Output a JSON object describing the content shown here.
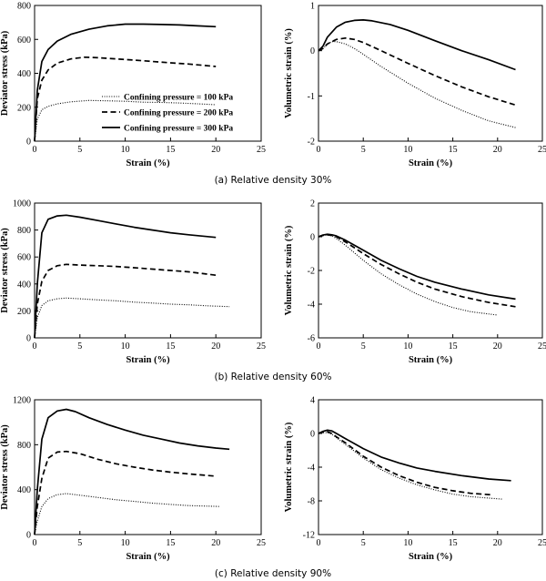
{
  "captions": [
    "(a)  Relative density 30%",
    "(b)  Relative density 60%",
    "(c)  Relative density 90%"
  ],
  "legend": {
    "entries": [
      "Confining pressure = 100 kPa",
      "Confining pressure = 200 kPa",
      "Confining pressure = 300 kPa"
    ],
    "styles": [
      "dotted",
      "dashed",
      "solid"
    ]
  },
  "chart_data": [
    {
      "type": "line",
      "panel": "a-left",
      "xlabel": "Strain (%)",
      "ylabel": "Deviator stress (kPa)",
      "xlim": [
        0,
        25
      ],
      "ylim": [
        0,
        800
      ],
      "xticks": [
        0,
        5,
        10,
        15,
        20,
        25
      ],
      "yticks": [
        0,
        200,
        400,
        600,
        800
      ],
      "series": [
        {
          "name": "Confining pressure = 100 kPa",
          "style": "dotted",
          "x": [
            0,
            0.3,
            0.8,
            1.5,
            2.5,
            4,
            6,
            8,
            10,
            12,
            14,
            16,
            18,
            20
          ],
          "y": [
            0,
            130,
            185,
            205,
            220,
            232,
            240,
            238,
            235,
            230,
            228,
            225,
            220,
            215
          ]
        },
        {
          "name": "Confining pressure = 200 kPa",
          "style": "dashed",
          "x": [
            0,
            0.3,
            0.8,
            1.5,
            2.5,
            4,
            5.5,
            7,
            9,
            11,
            13,
            15,
            17,
            19,
            20
          ],
          "y": [
            0,
            250,
            360,
            420,
            460,
            485,
            495,
            492,
            485,
            478,
            470,
            462,
            455,
            445,
            440
          ]
        },
        {
          "name": "Confining pressure = 300 kPa",
          "style": "solid",
          "x": [
            0,
            0.3,
            0.8,
            1.5,
            2.5,
            4,
            6,
            8,
            10,
            12,
            14,
            16,
            18,
            20
          ],
          "y": [
            0,
            300,
            470,
            540,
            590,
            630,
            660,
            680,
            690,
            690,
            688,
            685,
            680,
            675
          ]
        }
      ]
    },
    {
      "type": "line",
      "panel": "a-right",
      "xlabel": "Strain (%)",
      "ylabel": "Volumetric strain (%)",
      "xlim": [
        0,
        25
      ],
      "ylim": [
        -2,
        1
      ],
      "xticks": [
        0,
        5,
        10,
        15,
        20,
        25
      ],
      "yticks": [
        -2,
        -1,
        0,
        1
      ],
      "series": [
        {
          "name": "Confining pressure = 100 kPa",
          "style": "dotted",
          "x": [
            0,
            0.5,
            1,
            1.5,
            2,
            3,
            4,
            5,
            7,
            10,
            13,
            16,
            19,
            22
          ],
          "y": [
            0,
            0.05,
            0.15,
            0.2,
            0.2,
            0.15,
            0.05,
            -0.08,
            -0.35,
            -0.72,
            -1.05,
            -1.32,
            -1.55,
            -1.7
          ]
        },
        {
          "name": "Confining pressure = 200 kPa",
          "style": "dashed",
          "x": [
            0,
            0.5,
            1,
            2,
            3,
            4,
            5,
            7,
            10,
            13,
            16,
            19,
            22
          ],
          "y": [
            0,
            0.05,
            0.15,
            0.25,
            0.28,
            0.25,
            0.18,
            0,
            -0.28,
            -0.55,
            -0.8,
            -1.02,
            -1.2
          ]
        },
        {
          "name": "Confining pressure = 300 kPa",
          "style": "solid",
          "x": [
            0,
            0.5,
            1,
            2,
            3,
            4,
            5,
            6,
            8,
            10,
            13,
            16,
            19,
            22
          ],
          "y": [
            0,
            0.1,
            0.3,
            0.52,
            0.63,
            0.67,
            0.68,
            0.66,
            0.58,
            0.45,
            0.22,
            0,
            -0.2,
            -0.42
          ]
        }
      ]
    },
    {
      "type": "line",
      "panel": "b-left",
      "xlabel": "Strain (%)",
      "ylabel": "Deviator stress (kPa)",
      "xlim": [
        0,
        25
      ],
      "ylim": [
        0,
        1000
      ],
      "xticks": [
        0,
        5,
        10,
        15,
        20,
        25
      ],
      "yticks": [
        0,
        200,
        400,
        600,
        800,
        1000
      ],
      "series": [
        {
          "name": "Confining pressure = 100 kPa",
          "style": "dotted",
          "x": [
            0,
            0.3,
            0.8,
            1.5,
            2.5,
            3.5,
            5,
            7,
            9,
            11,
            13,
            15,
            17,
            19,
            21.5
          ],
          "y": [
            0,
            150,
            240,
            275,
            290,
            295,
            290,
            282,
            275,
            265,
            258,
            250,
            245,
            238,
            232
          ]
        },
        {
          "name": "Confining pressure = 200 kPa",
          "style": "dashed",
          "x": [
            0,
            0.3,
            0.8,
            1.5,
            2.5,
            3.5,
            5,
            7,
            9,
            11,
            13,
            15,
            17,
            20
          ],
          "y": [
            0,
            250,
            420,
            500,
            535,
            545,
            540,
            535,
            530,
            520,
            510,
            500,
            490,
            465
          ]
        },
        {
          "name": "Confining pressure = 300 kPa",
          "style": "solid",
          "x": [
            0,
            0.3,
            0.8,
            1.5,
            2.5,
            3.5,
            5,
            7,
            9,
            11,
            13,
            15,
            17,
            20
          ],
          "y": [
            0,
            400,
            780,
            880,
            905,
            910,
            895,
            870,
            845,
            820,
            800,
            780,
            765,
            745
          ]
        }
      ]
    },
    {
      "type": "line",
      "panel": "b-right",
      "xlabel": "Strain (%)",
      "ylabel": "Volumetric strain (%)",
      "xlim": [
        0,
        25
      ],
      "ylim": [
        -6,
        2
      ],
      "xticks": [
        0,
        5,
        10,
        15,
        20,
        25
      ],
      "yticks": [
        -6,
        -4,
        -2,
        0,
        2
      ],
      "series": [
        {
          "name": "Confining pressure = 100 kPa",
          "style": "dotted",
          "x": [
            0,
            0.5,
            1,
            1.5,
            2,
            3,
            4,
            5,
            7,
            9,
            11,
            13,
            15,
            17,
            20
          ],
          "y": [
            0,
            0.08,
            0.1,
            0.05,
            -0.1,
            -0.5,
            -0.95,
            -1.4,
            -2.2,
            -2.85,
            -3.4,
            -3.85,
            -4.2,
            -4.45,
            -4.65
          ]
        },
        {
          "name": "Confining pressure = 200 kPa",
          "style": "dashed",
          "x": [
            0,
            0.5,
            1,
            1.5,
            2,
            3,
            4,
            5,
            7,
            9,
            11,
            13,
            16,
            19,
            22
          ],
          "y": [
            0,
            0.08,
            0.12,
            0.08,
            0,
            -0.3,
            -0.65,
            -1,
            -1.65,
            -2.2,
            -2.7,
            -3.1,
            -3.55,
            -3.9,
            -4.15
          ]
        },
        {
          "name": "Confining pressure = 300 kPa",
          "style": "solid",
          "x": [
            0,
            0.5,
            1,
            1.5,
            2,
            3,
            4,
            5,
            7,
            9,
            11,
            13,
            16,
            19,
            22
          ],
          "y": [
            0,
            0.1,
            0.15,
            0.12,
            0.05,
            -0.2,
            -0.5,
            -0.8,
            -1.4,
            -1.9,
            -2.35,
            -2.7,
            -3.1,
            -3.45,
            -3.7
          ]
        }
      ]
    },
    {
      "type": "line",
      "panel": "c-left",
      "xlabel": "Strain (%)",
      "ylabel": "Deviator stress (kPa)",
      "xlim": [
        0,
        25
      ],
      "ylim": [
        0,
        1200
      ],
      "xticks": [
        0,
        5,
        10,
        15,
        20,
        25
      ],
      "yticks": [
        0,
        400,
        800,
        1200
      ],
      "series": [
        {
          "name": "Confining pressure = 100 kPa",
          "style": "dotted",
          "x": [
            0,
            0.3,
            0.8,
            1.5,
            2.5,
            3.5,
            5,
            7,
            9,
            11,
            13,
            15,
            17,
            20.5
          ],
          "y": [
            0,
            120,
            250,
            320,
            355,
            365,
            350,
            330,
            310,
            295,
            280,
            268,
            258,
            250
          ]
        },
        {
          "name": "Confining pressure = 200 kPa",
          "style": "dashed",
          "x": [
            0,
            0.3,
            0.8,
            1.5,
            2.5,
            3.5,
            5,
            7,
            9,
            11,
            13,
            15,
            17,
            20
          ],
          "y": [
            0,
            250,
            500,
            680,
            735,
            740,
            720,
            670,
            630,
            600,
            575,
            555,
            540,
            520
          ]
        },
        {
          "name": "Confining pressure = 300 kPa",
          "style": "solid",
          "x": [
            0,
            0.3,
            0.8,
            1.5,
            2.5,
            3.5,
            4.5,
            6,
            8,
            10,
            12,
            14,
            16,
            18,
            20,
            21.5
          ],
          "y": [
            0,
            400,
            850,
            1040,
            1100,
            1115,
            1095,
            1040,
            980,
            930,
            885,
            850,
            815,
            790,
            770,
            760
          ]
        }
      ]
    },
    {
      "type": "line",
      "panel": "c-right",
      "xlabel": "Strain (%)",
      "ylabel": "Volumetric strain (%)",
      "xlim": [
        0,
        25
      ],
      "ylim": [
        -12,
        4
      ],
      "xticks": [
        0,
        5,
        10,
        15,
        20,
        25
      ],
      "yticks": [
        -12,
        -8,
        -4,
        0,
        4
      ],
      "series": [
        {
          "name": "Confining pressure = 100 kPa",
          "style": "dotted",
          "x": [
            0,
            0.5,
            1,
            1.5,
            2,
            3,
            4,
            5,
            7,
            9,
            11,
            13,
            15,
            17,
            20.5
          ],
          "y": [
            0,
            0.1,
            0.1,
            -0.1,
            -0.5,
            -1.3,
            -2.1,
            -2.9,
            -4.3,
            -5.3,
            -6.1,
            -6.7,
            -7.2,
            -7.5,
            -7.8
          ]
        },
        {
          "name": "Confining pressure = 200 kPa",
          "style": "dashed",
          "x": [
            0,
            0.5,
            1,
            1.5,
            2,
            3,
            4,
            5,
            7,
            9,
            11,
            13,
            15,
            17,
            19.5
          ],
          "y": [
            0,
            0.15,
            0.2,
            0,
            -0.4,
            -1.1,
            -1.9,
            -2.7,
            -4,
            -5,
            -5.8,
            -6.4,
            -6.8,
            -7.1,
            -7.3
          ]
        },
        {
          "name": "Confining pressure = 300 kPa",
          "style": "solid",
          "x": [
            0,
            0.5,
            1,
            1.5,
            2,
            3,
            4,
            5,
            7,
            9,
            11,
            13,
            16,
            19,
            21.5
          ],
          "y": [
            0,
            0.25,
            0.4,
            0.3,
            0,
            -0.6,
            -1.2,
            -1.8,
            -2.8,
            -3.5,
            -4.1,
            -4.5,
            -5,
            -5.4,
            -5.6
          ]
        }
      ]
    }
  ]
}
